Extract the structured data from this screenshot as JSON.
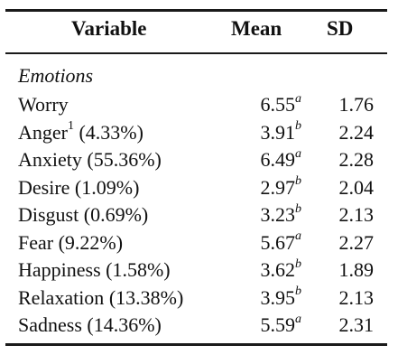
{
  "table": {
    "headers": {
      "variable": "Variable",
      "mean": "Mean",
      "sd": "SD"
    },
    "section_label": "Emotions",
    "rows": [
      {
        "label": "Worry",
        "footnote": "",
        "share": "",
        "mean": "6.55",
        "mean_sup": "a",
        "sd": "1.76"
      },
      {
        "label": "Anger",
        "footnote": "1",
        "share": "(4.33%)",
        "mean": "3.91",
        "mean_sup": "b",
        "sd": "2.24"
      },
      {
        "label": "Anxiety",
        "footnote": "",
        "share": "(55.36%)",
        "mean": "6.49",
        "mean_sup": "a",
        "sd": "2.28"
      },
      {
        "label": "Desire",
        "footnote": "",
        "share": "(1.09%)",
        "mean": "2.97",
        "mean_sup": "b",
        "sd": "2.04"
      },
      {
        "label": "Disgust",
        "footnote": "",
        "share": "(0.69%)",
        "mean": "3.23",
        "mean_sup": "b",
        "sd": "2.13"
      },
      {
        "label": "Fear",
        "footnote": "",
        "share": "(9.22%)",
        "mean": "5.67",
        "mean_sup": "a",
        "sd": "2.27"
      },
      {
        "label": "Happiness",
        "footnote": "",
        "share": "(1.58%)",
        "mean": "3.62",
        "mean_sup": "b",
        "sd": "1.89"
      },
      {
        "label": "Relaxation",
        "footnote": "",
        "share": "(13.38%)",
        "mean": "3.95",
        "mean_sup": "b",
        "sd": "2.13"
      },
      {
        "label": "Sadness",
        "footnote": "",
        "share": "(14.36%)",
        "mean": "5.59",
        "mean_sup": "a",
        "sd": "2.31"
      }
    ]
  }
}
